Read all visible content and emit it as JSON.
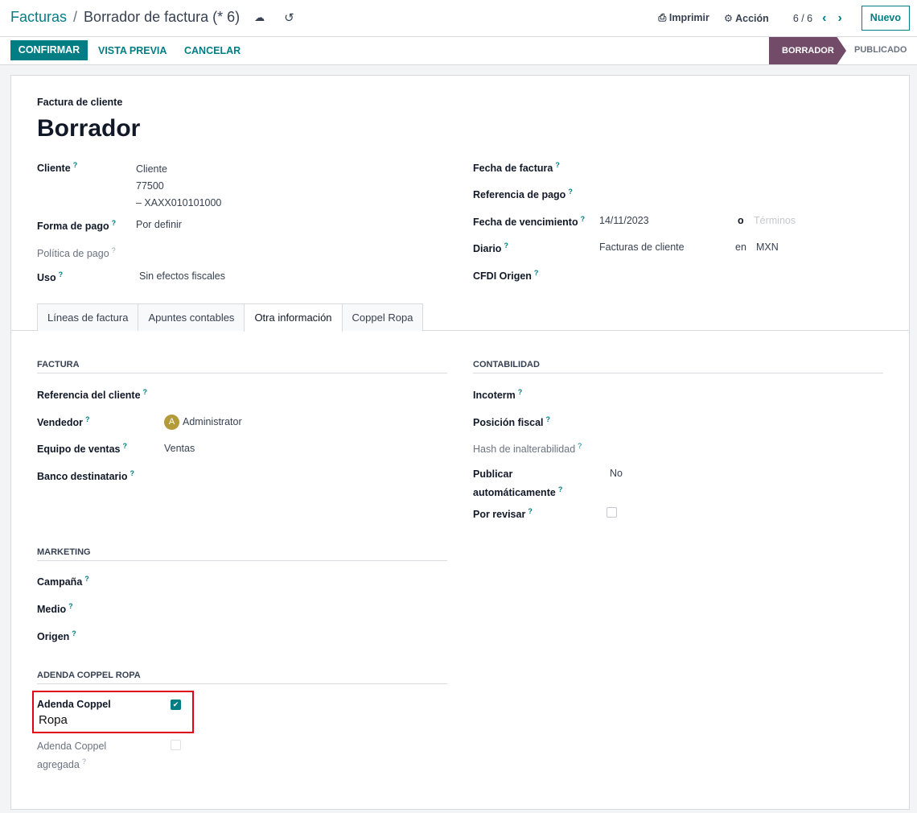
{
  "breadcrumb": {
    "parent": "Facturas",
    "separator": "/",
    "current": "Borrador de factura (* 6)"
  },
  "header": {
    "print": "Imprimir",
    "action": "Acción",
    "pager": "6 / 6",
    "new": "Nuevo"
  },
  "toolbar": {
    "confirm": "CONFIRMAR",
    "preview": "VISTA PREVIA",
    "cancel": "CANCELAR"
  },
  "status": {
    "stages": [
      "BORRADOR",
      "PUBLICADO"
    ],
    "active": "BORRADOR",
    "active_color": "#714b67"
  },
  "form": {
    "type": "Factura de cliente",
    "title": "Borrador",
    "left": {
      "cliente_label": "Cliente",
      "cliente_lines": [
        "Cliente",
        "77500",
        "– XAXX010101000"
      ],
      "forma_pago_label": "Forma de pago",
      "forma_pago": "Por definir",
      "politica_label": "Política de pago",
      "uso_label": "Uso",
      "uso": "Sin efectos fiscales"
    },
    "right": {
      "fecha_factura_label": "Fecha de factura",
      "ref_pago_label": "Referencia de pago",
      "vencimiento_label": "Fecha de vencimiento",
      "vencimiento": "14/11/2023",
      "o": "o",
      "terminos_placeholder": "Términos",
      "diario_label": "Diario",
      "diario": "Facturas de cliente",
      "en": "en",
      "moneda": "MXN",
      "cfdi_label": "CFDI Origen"
    }
  },
  "tabs": [
    {
      "label": "Líneas de factura"
    },
    {
      "label": "Apuntes contables"
    },
    {
      "label": "Otra información",
      "active": true
    },
    {
      "label": "Coppel Ropa"
    }
  ],
  "otra": {
    "factura": {
      "title": "FACTURA",
      "ref_cliente": "Referencia del cliente",
      "vendedor": "Vendedor",
      "vendedor_initial": "A",
      "vendedor_value": "Administrator",
      "equipo": "Equipo de ventas",
      "equipo_value": "Ventas",
      "banco": "Banco destinatario"
    },
    "contabilidad": {
      "title": "CONTABILIDAD",
      "incoterm": "Incoterm",
      "posicion": "Posición fiscal",
      "hash": "Hash de inalterabilidad",
      "publicar": [
        "Publicar",
        "automáticamente"
      ],
      "publicar_value": "No",
      "revisar": "Por revisar",
      "revisar_checked": false
    },
    "marketing": {
      "title": "MARKETING",
      "campana": "Campaña",
      "medio": "Medio",
      "origen": "Origen"
    },
    "adenda": {
      "title": "ADENDA COPPEL ROPA",
      "coppel_label": "Adenda Coppel",
      "coppel_label2": "Ropa",
      "coppel_checked": true,
      "agregada": [
        "Adenda Coppel",
        "agregada"
      ],
      "agregada_checked": false
    }
  },
  "help_mark": "?"
}
